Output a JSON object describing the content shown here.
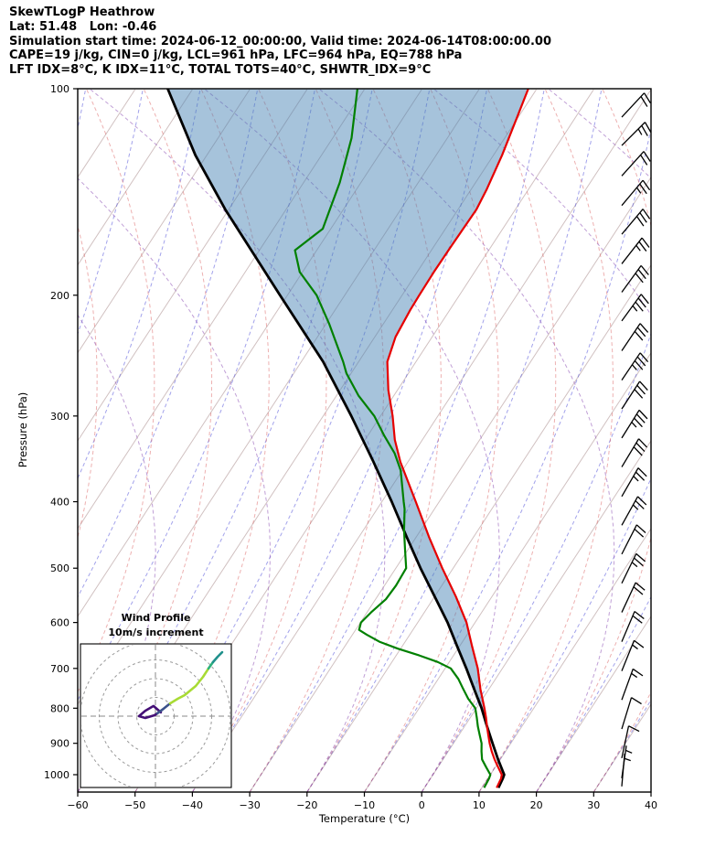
{
  "header": {
    "title": "SkewTLogP Heathrow",
    "location_line": "Lat: 51.48   Lon: -0.46",
    "time_line": "Simulation start time: 2024-06-12_00:00:00, Valid time: 2024-06-14T08:00:00.00",
    "indices_line1": "CAPE=19 j/kg, CIN=0 j/kg, LCL=961 hPa, LFC=964 hPa, EQ=788 hPa",
    "indices_line2": "LFT IDX=8°C, K IDX=11°C, TOTAL TOTS=40°C, SHWTR_IDX=9°C"
  },
  "axes": {
    "xlabel": "Temperature (°C)",
    "ylabel": "Pressure (hPa)"
  },
  "inset": {
    "title": "Wind Profile",
    "subtitle": "10m/s increment"
  },
  "chart_data": {
    "type": "line",
    "title": "SkewTLogP Heathrow",
    "xlabel": "Temperature (°C)",
    "ylabel": "Pressure (hPa)",
    "xlim": [
      -60,
      40
    ],
    "pressure_ticks": [
      100,
      200,
      300,
      400,
      500,
      600,
      700,
      800,
      900,
      1000
    ],
    "temp_ticks": [
      -60,
      -50,
      -40,
      -30,
      -20,
      -10,
      0,
      10,
      20,
      30,
      40
    ],
    "p_top": 100,
    "p_bottom": 1050,
    "colors": {
      "temperature": "#e60000",
      "dewpoint": "#008000",
      "parcel": "#000000",
      "shade": "rgba(70,130,180,0.48)",
      "isotherms": "rgba(170,140,140,0.55)",
      "blue_family": "rgba(70,70,215,0.5)",
      "red_family": "rgba(215,80,80,0.45)",
      "purple_family": "rgba(140,80,180,0.55)",
      "barbs": "#000000"
    },
    "background_lines": {
      "isotherms": {
        "tmin": -130,
        "tmax": 40,
        "step": 10,
        "bend": 0
      },
      "blue": {
        "tmin": -110,
        "tmax": 40,
        "step": 10,
        "bend": 180
      },
      "red": {
        "tmin": -80,
        "tmax": 30,
        "step": 10,
        "bend": 430
      },
      "purple": {
        "tmin": -60,
        "tmax": 100,
        "step": 20,
        "bend": 740
      }
    },
    "temperature_profile": [
      [
        1045,
        12.6
      ],
      [
        1013,
        12.3
      ],
      [
        1000,
        12.0
      ],
      [
        975,
        10.5
      ],
      [
        950,
        9.0
      ],
      [
        925,
        7.6
      ],
      [
        900,
        6.3
      ],
      [
        875,
        5.1
      ],
      [
        850,
        3.9
      ],
      [
        825,
        2.7
      ],
      [
        800,
        1.4
      ],
      [
        750,
        -1.5
      ],
      [
        700,
        -4.3
      ],
      [
        650,
        -7.8
      ],
      [
        600,
        -11.5
      ],
      [
        550,
        -16.3
      ],
      [
        500,
        -21.9
      ],
      [
        450,
        -27.8
      ],
      [
        400,
        -34.1
      ],
      [
        350,
        -41.3
      ],
      [
        325,
        -44.8
      ],
      [
        300,
        -47.9
      ],
      [
        275,
        -51.6
      ],
      [
        250,
        -55.0
      ],
      [
        230,
        -56.4
      ],
      [
        210,
        -56.9
      ],
      [
        200,
        -57.0
      ],
      [
        185,
        -57.1
      ],
      [
        170,
        -57.0
      ],
      [
        150,
        -56.8
      ],
      [
        140,
        -57.3
      ],
      [
        125,
        -58.5
      ],
      [
        110,
        -60.2
      ],
      [
        100,
        -61.5
      ]
    ],
    "dewpoint_profile": [
      [
        1045,
        10.4
      ],
      [
        1013,
        10.2
      ],
      [
        1000,
        10.0
      ],
      [
        975,
        8.4
      ],
      [
        950,
        6.8
      ],
      [
        925,
        5.8
      ],
      [
        900,
        4.9
      ],
      [
        875,
        3.6
      ],
      [
        850,
        2.3
      ],
      [
        825,
        1.1
      ],
      [
        800,
        -0.2
      ],
      [
        775,
        -2.5
      ],
      [
        750,
        -4.5
      ],
      [
        725,
        -6.5
      ],
      [
        700,
        -9.0
      ],
      [
        685,
        -12.0
      ],
      [
        670,
        -16.0
      ],
      [
        655,
        -20.5
      ],
      [
        640,
        -24.5
      ],
      [
        625,
        -27.5
      ],
      [
        615,
        -29.4
      ],
      [
        600,
        -29.9
      ],
      [
        580,
        -29.3
      ],
      [
        555,
        -28.2
      ],
      [
        530,
        -28.0
      ],
      [
        500,
        -28.2
      ],
      [
        470,
        -30.5
      ],
      [
        440,
        -32.9
      ],
      [
        410,
        -35.2
      ],
      [
        400,
        -36.2
      ],
      [
        380,
        -38.2
      ],
      [
        360,
        -40.3
      ],
      [
        340,
        -43.3
      ],
      [
        320,
        -47.2
      ],
      [
        300,
        -51.1
      ],
      [
        280,
        -56.2
      ],
      [
        260,
        -60.8
      ],
      [
        250,
        -62.7
      ],
      [
        235,
        -66.0
      ],
      [
        220,
        -69.5
      ],
      [
        200,
        -74.9
      ],
      [
        185,
        -80.5
      ],
      [
        172,
        -83.8
      ],
      [
        160,
        -81.4
      ],
      [
        137,
        -83.7
      ],
      [
        118,
        -86.7
      ],
      [
        100,
        -91.3
      ]
    ],
    "parcel_profile": [
      [
        1045,
        12.9
      ],
      [
        1013,
        12.6
      ],
      [
        1000,
        12.4
      ],
      [
        950,
        9.6
      ],
      [
        900,
        6.8
      ],
      [
        850,
        3.9
      ],
      [
        800,
        0.9
      ],
      [
        750,
        -2.6
      ],
      [
        700,
        -6.3
      ],
      [
        650,
        -10.4
      ],
      [
        600,
        -14.8
      ],
      [
        550,
        -20.0
      ],
      [
        500,
        -25.7
      ],
      [
        450,
        -31.7
      ],
      [
        400,
        -38.3
      ],
      [
        350,
        -46.0
      ],
      [
        300,
        -55.1
      ],
      [
        250,
        -66.2
      ],
      [
        200,
        -81.3
      ],
      [
        150,
        -100.6
      ],
      [
        125,
        -112.0
      ],
      [
        100,
        -124.4
      ]
    ],
    "shade_between": [
      "parcel_profile",
      "temperature_profile"
    ],
    "shade_p_max": 850,
    "wind_barbs": [
      {
        "p": 110,
        "tilt": 43,
        "full": 2,
        "half": 0
      },
      {
        "p": 121,
        "tilt": 45,
        "full": 2,
        "half": 1
      },
      {
        "p": 134,
        "tilt": 42,
        "full": 2,
        "half": 0
      },
      {
        "p": 148,
        "tilt": 40,
        "full": 2,
        "half": 1
      },
      {
        "p": 163,
        "tilt": 40,
        "full": 3,
        "half": 0
      },
      {
        "p": 180,
        "tilt": 38,
        "full": 2,
        "half": 1
      },
      {
        "p": 198,
        "tilt": 36,
        "full": 3,
        "half": 0
      },
      {
        "p": 218,
        "tilt": 36,
        "full": 3,
        "half": 1
      },
      {
        "p": 241,
        "tilt": 34,
        "full": 3,
        "half": 0
      },
      {
        "p": 266,
        "tilt": 34,
        "full": 3,
        "half": 1
      },
      {
        "p": 293,
        "tilt": 33,
        "full": 3,
        "half": 0
      },
      {
        "p": 323,
        "tilt": 32,
        "full": 3,
        "half": 1
      },
      {
        "p": 356,
        "tilt": 31,
        "full": 3,
        "half": 0
      },
      {
        "p": 393,
        "tilt": 30,
        "full": 2,
        "half": 1
      },
      {
        "p": 433,
        "tilt": 29,
        "full": 2,
        "half": 1
      },
      {
        "p": 477,
        "tilt": 27,
        "full": 2,
        "half": 0
      },
      {
        "p": 526,
        "tilt": 26,
        "full": 2,
        "half": 1
      },
      {
        "p": 580,
        "tilt": 25,
        "full": 2,
        "half": 0
      },
      {
        "p": 640,
        "tilt": 23,
        "full": 2,
        "half": 0
      },
      {
        "p": 706,
        "tilt": 22,
        "full": 1,
        "half": 1
      },
      {
        "p": 778,
        "tilt": 20,
        "full": 1,
        "half": 1
      },
      {
        "p": 858,
        "tilt": 17,
        "full": 1,
        "half": 0
      },
      {
        "p": 946,
        "tilt": 12,
        "full": 1,
        "half": 0
      },
      {
        "p": 1012,
        "tilt": 8,
        "full": 0,
        "half": 1
      },
      {
        "p": 1040,
        "tilt": 5,
        "full": 0,
        "half": 1
      }
    ],
    "hodograph": {
      "ring_increment_ms": 10,
      "rings_ms": [
        10,
        20,
        30,
        40
      ],
      "trace_segments": [
        {
          "color": "#440f76",
          "uv": [
            [
              2.9,
              2.0
            ],
            [
              -1.0,
              5.4
            ],
            [
              -5.4,
              2.9
            ],
            [
              -8.8,
              0.0
            ],
            [
              -5.4,
              -1.0
            ],
            [
              -0.5,
              0.5
            ],
            [
              1.0,
              1.5
            ]
          ]
        },
        {
          "color": "#3b528b",
          "uv": [
            [
              1.0,
              1.5
            ],
            [
              4.4,
              4.0
            ],
            [
              7.8,
              6.8
            ]
          ]
        },
        {
          "color": "#a8db34",
          "uv": [
            [
              7.8,
              6.8
            ],
            [
              12.0,
              9.3
            ],
            [
              15.6,
              11.2
            ],
            [
              21.5,
              16.1
            ],
            [
              25.4,
              21.0
            ],
            [
              28.3,
              25.4
            ]
          ]
        },
        {
          "color": "#2db27d",
          "uv": [
            [
              28.3,
              25.4
            ],
            [
              30.7,
              28.8
            ]
          ]
        },
        {
          "color": "#21918c",
          "uv": [
            [
              30.7,
              28.8
            ],
            [
              33.2,
              31.7
            ],
            [
              35.6,
              34.1
            ]
          ]
        }
      ]
    }
  }
}
